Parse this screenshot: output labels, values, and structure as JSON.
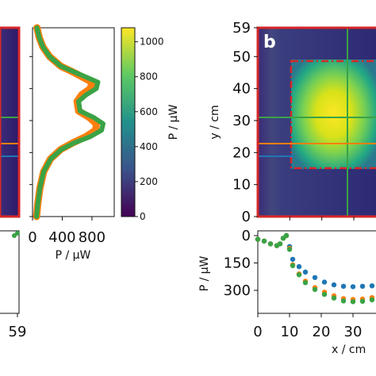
{
  "chart_data": [
    {
      "type": "heatmap",
      "panel": "a (partial)",
      "title": "",
      "ylabel": "",
      "xlabel": "",
      "yticks": [],
      "xticks": [],
      "cursor_lines": [
        {
          "name": "green",
          "color": "#3aa345"
        },
        {
          "name": "orange",
          "color": "#ff7f0e"
        },
        {
          "name": "blue",
          "color": "#1f77b4"
        }
      ]
    },
    {
      "type": "line",
      "panel": "vertical profile (left)",
      "xlabel": "P / µW",
      "xticks": [
        "0",
        "400",
        "800"
      ],
      "xlim": [
        0,
        1100
      ],
      "ylim": [
        0,
        59
      ],
      "series": [
        {
          "color": "#ff7f0e",
          "points": [
            [
              60,
              59
            ],
            [
              90,
              56
            ],
            [
              140,
              53
            ],
            [
              230,
              50
            ],
            [
              380,
              47
            ],
            [
              560,
              45
            ],
            [
              720,
              43
            ],
            [
              800,
              42
            ],
            [
              780,
              40
            ],
            [
              660,
              38
            ],
            [
              600,
              36
            ],
            [
              620,
              33
            ],
            [
              760,
              31
            ],
            [
              860,
              29
            ],
            [
              850,
              27
            ],
            [
              720,
              25
            ],
            [
              540,
              23
            ],
            [
              380,
              21
            ],
            [
              240,
              18
            ],
            [
              150,
              14
            ],
            [
              100,
              9
            ],
            [
              70,
              4
            ],
            [
              55,
              0
            ]
          ]
        },
        {
          "color": "#3aa345",
          "points": [
            [
              60,
              59
            ],
            [
              90,
              56
            ],
            [
              140,
              53
            ],
            [
              230,
              50
            ],
            [
              380,
              47
            ],
            [
              580,
              45
            ],
            [
              780,
              43
            ],
            [
              880,
              42
            ],
            [
              860,
              40
            ],
            [
              720,
              38
            ],
            [
              620,
              36
            ],
            [
              640,
              33
            ],
            [
              820,
              31
            ],
            [
              950,
              29
            ],
            [
              930,
              27
            ],
            [
              780,
              25
            ],
            [
              560,
              23
            ],
            [
              390,
              21
            ],
            [
              245,
              18
            ],
            [
              150,
              14
            ],
            [
              100,
              9
            ],
            [
              70,
              4
            ],
            [
              55,
              0
            ]
          ]
        }
      ]
    },
    {
      "type": "colorbar",
      "ylabel": "P / µW",
      "ticks": [
        "0",
        "200",
        "400",
        "600",
        "800",
        "1000"
      ],
      "range": [
        0,
        1080
      ]
    },
    {
      "type": "heatmap",
      "panel": "b",
      "panel_label": "b",
      "ylabel": "y / cm",
      "yticks": [
        "0",
        "10",
        "20",
        "30",
        "40",
        "50",
        "59"
      ],
      "ylim": [
        0,
        59
      ],
      "xlim": [
        0,
        59
      ],
      "roi": {
        "x": [
          10,
          59
        ],
        "y": [
          15,
          50
        ]
      },
      "cursor_x": 28,
      "cursor_lines": [
        {
          "name": "green",
          "y": 31,
          "color": "#3aa345"
        },
        {
          "name": "orange",
          "y": 23,
          "color": "#ff7f0e"
        },
        {
          "name": "blue",
          "y": 19,
          "color": "#1f77b4"
        }
      ]
    },
    {
      "type": "scatter",
      "panel": "horizontal profile (bottom right)",
      "xlabel": "x / cm",
      "ylabel": "P / µW",
      "xticks": [
        "0",
        "10",
        "20",
        "30"
      ],
      "yticks": [
        "0",
        "150",
        "300"
      ],
      "ylim": [
        420,
        0
      ],
      "series": [
        {
          "color": "#1f77b4",
          "points": [
            [
              0,
              20
            ],
            [
              2,
              30
            ],
            [
              4,
              45
            ],
            [
              6,
              55
            ],
            [
              7,
              45
            ],
            [
              8,
              15
            ],
            [
              9,
              0
            ],
            [
              10,
              60
            ],
            [
              11,
              130
            ],
            [
              13,
              170
            ],
            [
              15,
              200
            ],
            [
              18,
              230
            ],
            [
              21,
              255
            ],
            [
              24,
              270
            ],
            [
              27,
              278
            ],
            [
              30,
              280
            ],
            [
              33,
              278
            ],
            [
              36,
              275
            ]
          ]
        },
        {
          "color": "#ff7f0e",
          "points": [
            [
              0,
              20
            ],
            [
              2,
              30
            ],
            [
              4,
              45
            ],
            [
              6,
              55
            ],
            [
              7,
              45
            ],
            [
              8,
              15
            ],
            [
              9,
              0
            ],
            [
              10,
              70
            ],
            [
              11,
              160
            ],
            [
              13,
              210
            ],
            [
              15,
              250
            ],
            [
              18,
              285
            ],
            [
              21,
              310
            ],
            [
              24,
              330
            ],
            [
              27,
              345
            ],
            [
              30,
              350
            ],
            [
              33,
              348
            ],
            [
              36,
              340
            ]
          ]
        },
        {
          "color": "#3aa345",
          "points": [
            [
              0,
              20
            ],
            [
              2,
              30
            ],
            [
              4,
              45
            ],
            [
              6,
              55
            ],
            [
              7,
              45
            ],
            [
              8,
              15
            ],
            [
              9,
              0
            ],
            [
              10,
              75
            ],
            [
              11,
              165
            ],
            [
              13,
              215
            ],
            [
              15,
              258
            ],
            [
              18,
              295
            ],
            [
              21,
              322
            ],
            [
              24,
              342
            ],
            [
              27,
              358
            ],
            [
              30,
              362
            ],
            [
              33,
              360
            ],
            [
              36,
              352
            ]
          ]
        }
      ]
    },
    {
      "type": "line",
      "panel": "bottom-left profile (partial)",
      "xticks": [
        "59"
      ]
    }
  ]
}
